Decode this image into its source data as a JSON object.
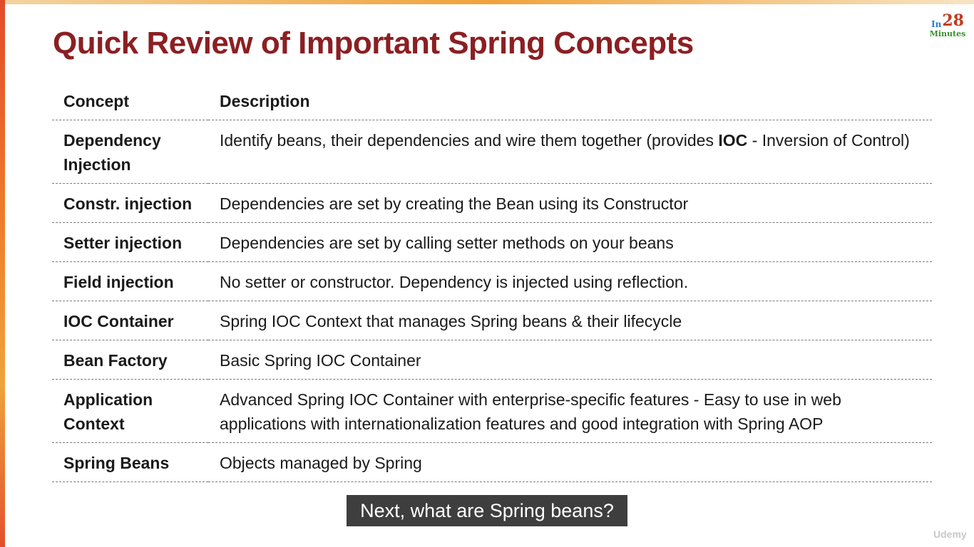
{
  "logo": {
    "prefix": "In",
    "number": "28",
    "word": "Minutes"
  },
  "slide": {
    "title": "Quick Review of Important Spring Concepts"
  },
  "table": {
    "headers": {
      "concept": "Concept",
      "description": "Description"
    },
    "rows": [
      {
        "concept": "Dependency Injection",
        "desc_before": "Identify beans, their dependencies and wire them together (provides ",
        "desc_bold": "IOC",
        "desc_after": " - Inversion of Control)"
      },
      {
        "concept": "Constr. injection",
        "desc_before": "Dependencies are set by creating the Bean using its Constructor",
        "desc_bold": "",
        "desc_after": ""
      },
      {
        "concept": "Setter injection",
        "desc_before": "Dependencies are set by calling setter methods on your beans",
        "desc_bold": "",
        "desc_after": ""
      },
      {
        "concept": "Field injection",
        "desc_before": "No setter or constructor. Dependency is injected using reflection.",
        "desc_bold": "",
        "desc_after": ""
      },
      {
        "concept": "IOC Container",
        "desc_before": "Spring IOC Context that manages Spring beans & their lifecycle",
        "desc_bold": "",
        "desc_after": ""
      },
      {
        "concept": "Bean Factory",
        "desc_before": "Basic Spring IOC Container",
        "desc_bold": "",
        "desc_after": ""
      },
      {
        "concept": "Application Context",
        "desc_before": "Advanced Spring IOC Container with enterprise-specific features - Easy to use in web applications with internationalization features and good integration with Spring AOP",
        "desc_bold": "",
        "desc_after": ""
      },
      {
        "concept": "Spring Beans",
        "desc_before": "Objects managed by Spring",
        "desc_bold": "",
        "desc_after": ""
      }
    ]
  },
  "caption": {
    "text": "Next, what are Spring beans?"
  },
  "watermark": {
    "text": "Udemy"
  },
  "colors": {
    "title": "#8b1f22",
    "accent_bar": "#ef7d2a",
    "caption_bg": "#3e3e3e"
  }
}
